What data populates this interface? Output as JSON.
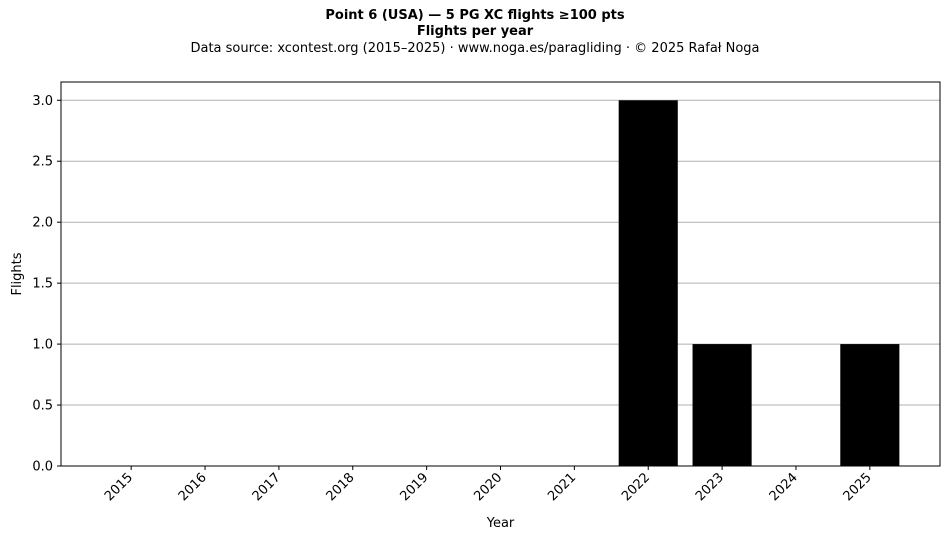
{
  "chart_data": {
    "type": "bar",
    "title": "Point 6 (USA)  —  5 PG XC flights ≥100 pts",
    "subtitle": "Flights per year",
    "source_note": "Data source: xcontest.org (2015–2025)  ·  www.noga.es/paragliding  ·  © 2025 Rafał Noga",
    "xlabel": "Year",
    "ylabel": "Flights",
    "categories": [
      "2015",
      "2016",
      "2017",
      "2018",
      "2019",
      "2020",
      "2021",
      "2022",
      "2023",
      "2024",
      "2025"
    ],
    "values": [
      0,
      0,
      0,
      0,
      0,
      0,
      0,
      3,
      1,
      0,
      1
    ],
    "ylim": [
      0,
      3.15
    ],
    "yticks": [
      "0.0",
      "0.5",
      "1.0",
      "1.5",
      "2.0",
      "2.5",
      "3.0"
    ],
    "grid": "y-major",
    "bar_color": "#000000",
    "grid_color": "#b0b0b0"
  }
}
